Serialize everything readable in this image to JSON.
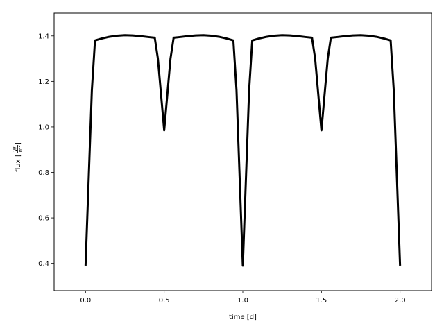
{
  "chart_data": {
    "type": "line",
    "xlabel": "time [d]",
    "ylabel": {
      "prefix": "flux",
      "unit_numerator": "W",
      "unit_denominator": "m",
      "unit_exponent": "2"
    },
    "xlim": [
      -0.2,
      2.2
    ],
    "ylim": [
      0.28,
      1.5
    ],
    "x_ticks": [
      0.0,
      0.5,
      1.0,
      1.5,
      2.0
    ],
    "x_tick_labels": [
      "0.0",
      "0.5",
      "1.0",
      "1.5",
      "2.0"
    ],
    "y_ticks": [
      0.4,
      0.6,
      0.8,
      1.0,
      1.2,
      1.4
    ],
    "y_tick_labels": [
      "0.4",
      "0.6",
      "0.8",
      "1.0",
      "1.2",
      "1.4"
    ],
    "grid": false,
    "series": [
      {
        "color": "#000000",
        "x": [
          0.0,
          0.04,
          0.06,
          0.1,
          0.15,
          0.2,
          0.25,
          0.3,
          0.35,
          0.4,
          0.44,
          0.46,
          0.5,
          0.54,
          0.56,
          0.6,
          0.65,
          0.7,
          0.75,
          0.8,
          0.85,
          0.9,
          0.94,
          0.96,
          1.0,
          1.04,
          1.06,
          1.1,
          1.15,
          1.2,
          1.25,
          1.3,
          1.35,
          1.4,
          1.44,
          1.46,
          1.5,
          1.54,
          1.56,
          1.6,
          1.65,
          1.7,
          1.75,
          1.8,
          1.85,
          1.9,
          1.94,
          1.96,
          2.0
        ],
        "y": [
          0.39,
          1.16,
          1.38,
          1.388,
          1.396,
          1.401,
          1.403,
          1.402,
          1.399,
          1.395,
          1.392,
          1.3,
          0.985,
          1.3,
          1.392,
          1.395,
          1.399,
          1.402,
          1.403,
          1.401,
          1.396,
          1.388,
          1.38,
          1.16,
          0.39,
          1.16,
          1.38,
          1.388,
          1.396,
          1.401,
          1.403,
          1.402,
          1.399,
          1.395,
          1.392,
          1.3,
          0.985,
          1.3,
          1.392,
          1.395,
          1.399,
          1.402,
          1.403,
          1.401,
          1.396,
          1.388,
          1.38,
          1.16,
          0.39
        ]
      }
    ]
  }
}
